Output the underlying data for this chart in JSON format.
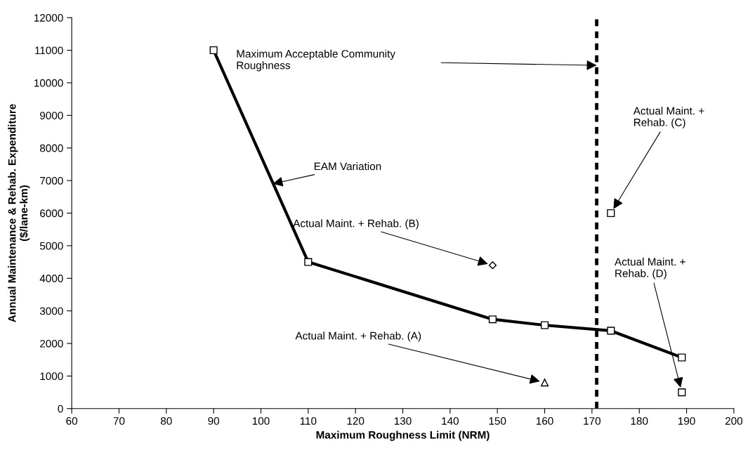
{
  "chart_data": {
    "type": "line",
    "xlabel": "Maximum Roughness Limit (NRM)",
    "ylabel": "Annual Maintenance & Rehab. Expenditure\n($/lane-km)",
    "xlim": [
      60,
      200
    ],
    "xticks": [
      60,
      70,
      80,
      90,
      100,
      110,
      120,
      130,
      140,
      150,
      160,
      170,
      180,
      190,
      200
    ],
    "ylim": [
      0,
      12000
    ],
    "yticks": [
      0,
      1000,
      2000,
      3000,
      4000,
      5000,
      6000,
      7000,
      8000,
      9000,
      10000,
      11000,
      12000
    ],
    "grid": false,
    "legend": false,
    "series": [
      {
        "color": "#000000",
        "marker": "square",
        "x": [
          90,
          110,
          149,
          160,
          174,
          189
        ],
        "values": [
          11000,
          4500,
          2740,
          2560,
          2390,
          1570
        ]
      },
      {
        "type": "scatter",
        "color": "#000000",
        "marker": "triangle",
        "x": [
          160
        ],
        "values": [
          800
        ]
      },
      {
        "type": "scatter",
        "color": "#000000",
        "marker": "diamond",
        "x": [
          149
        ],
        "values": [
          4400
        ]
      },
      {
        "type": "scatter",
        "color": "#000000",
        "marker": "square",
        "x": [
          174
        ],
        "values": [
          6000
        ]
      },
      {
        "type": "scatter",
        "color": "#000000",
        "marker": "square",
        "x": [
          189
        ],
        "values": [
          500
        ]
      }
    ],
    "ref_lines": [
      {
        "axis": "x",
        "value": 171,
        "label": "Maximum Acceptable Community\nRoughness",
        "color": "#000000",
        "line_style": "dotted"
      }
    ],
    "annotations": [
      {
        "text": "EAM Variation",
        "x": 102.5,
        "y": 6900
      },
      {
        "text": "Actual Maint. + Rehab. (B)",
        "x": 149,
        "y": 4400
      },
      {
        "text": "Actual Maint. + Rehab. (A)",
        "x": 160,
        "y": 800
      },
      {
        "text": "Actual Maint. +\nRehab. (C)",
        "x": 174,
        "y": 6000
      },
      {
        "text": "Actual Maint. +\nRehab. (D)",
        "x": 189,
        "y": 500
      }
    ]
  }
}
